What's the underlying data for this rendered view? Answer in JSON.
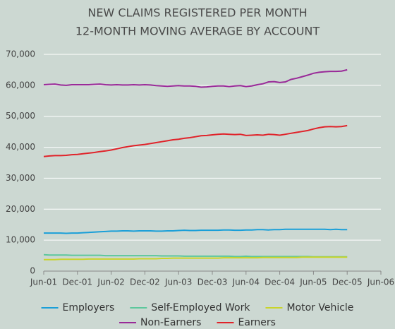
{
  "chart_data": {
    "type": "line",
    "title": [
      "NEW CLAIMS REGISTERED PER MONTH",
      "12-MONTH MOVING AVERAGE BY ACCOUNT"
    ],
    "categories": [
      "Jun-01",
      null,
      null,
      null,
      null,
      null,
      "Dec-01",
      null,
      null,
      null,
      null,
      null,
      "Jun-02",
      null,
      null,
      null,
      null,
      null,
      "Dec-02",
      null,
      null,
      null,
      null,
      null,
      "Jun-03",
      null,
      null,
      null,
      null,
      null,
      "Dec-03",
      null,
      null,
      null,
      null,
      null,
      "Jun-04",
      null,
      null,
      null,
      null,
      null,
      "Dec-04",
      null,
      null,
      null,
      null,
      null,
      "Jun-05",
      null,
      null,
      null,
      null,
      null,
      "Dec-05",
      null,
      null,
      null,
      null,
      null,
      "Jun-06"
    ],
    "ylim": [
      0,
      70000
    ],
    "yticks": [
      0,
      {
        "value": 10000,
        "label": "10,000"
      },
      {
        "value": 20000,
        "label": "20,000"
      },
      {
        "value": 30000,
        "label": "30,000"
      },
      {
        "value": 40000,
        "label": "40,000"
      },
      {
        "value": 50000,
        "label": "50,000"
      },
      {
        "value": 60000,
        "label": "60,000"
      },
      {
        "value": 70000,
        "label": "70,000"
      }
    ],
    "grid": true,
    "series": [
      {
        "name": "Employers",
        "color": "#1a9fd8",
        "values": [
          12300,
          12300,
          12300,
          12300,
          12200,
          12300,
          12300,
          12400,
          12500,
          12600,
          12700,
          12800,
          12900,
          12900,
          13000,
          13000,
          12900,
          13000,
          13000,
          13000,
          12900,
          12900,
          13000,
          13000,
          13100,
          13200,
          13100,
          13100,
          13200,
          13200,
          13200,
          13200,
          13300,
          13300,
          13200,
          13200,
          13300,
          13300,
          13400,
          13400,
          13300,
          13400,
          13400,
          13500,
          13500,
          13500,
          13500,
          13500,
          13500,
          13500,
          13500,
          13400,
          13500,
          13400,
          13400,
          null,
          null,
          null,
          null,
          null,
          null
        ]
      },
      {
        "name": "Self-Employed Work",
        "color": "#5cc79c",
        "values": [
          5300,
          5200,
          5200,
          5200,
          5200,
          5100,
          5100,
          5100,
          5100,
          5100,
          5100,
          5000,
          5000,
          5000,
          5000,
          5000,
          5000,
          5000,
          5000,
          5000,
          5000,
          4900,
          4900,
          4900,
          4900,
          4800,
          4800,
          4800,
          4800,
          4800,
          4800,
          4800,
          4800,
          4800,
          4700,
          4700,
          4800,
          4700,
          4700,
          4700,
          4700,
          4700,
          4700,
          4700,
          4700,
          4700,
          4700,
          4700,
          4600,
          4600,
          4600,
          4600,
          4600,
          4600,
          4600,
          null,
          null,
          null,
          null,
          null,
          null
        ]
      },
      {
        "name": "Motor Vehicle",
        "color": "#c9d42a",
        "values": [
          3700,
          3700,
          3700,
          3800,
          3800,
          3800,
          3800,
          3800,
          3900,
          3900,
          3900,
          3900,
          3900,
          3900,
          3900,
          3900,
          3900,
          4000,
          4000,
          4000,
          4000,
          4100,
          4100,
          4200,
          4200,
          4200,
          4200,
          4200,
          4200,
          4200,
          4200,
          4200,
          4300,
          4300,
          4300,
          4300,
          4300,
          4300,
          4300,
          4400,
          4400,
          4400,
          4400,
          4400,
          4400,
          4400,
          4500,
          4500,
          4500,
          4500,
          4500,
          4500,
          4500,
          4500,
          4500,
          null,
          null,
          null,
          null,
          null,
          null
        ]
      },
      {
        "name": "Non-Earners",
        "color": "#992a98",
        "values": [
          60200,
          60300,
          60400,
          60100,
          60000,
          60200,
          60200,
          60200,
          60200,
          60300,
          60400,
          60200,
          60100,
          60200,
          60100,
          60100,
          60200,
          60100,
          60200,
          60100,
          59900,
          59800,
          59700,
          59800,
          59900,
          59800,
          59800,
          59700,
          59400,
          59500,
          59700,
          59800,
          59800,
          59600,
          59800,
          59900,
          59600,
          59800,
          60200,
          60500,
          61100,
          61200,
          60900,
          61100,
          61900,
          62300,
          62800,
          63300,
          63900,
          64200,
          64400,
          64500,
          64500,
          64600,
          65000,
          null,
          null,
          null,
          null,
          null,
          null
        ]
      },
      {
        "name": "Earners",
        "color": "#e0232a",
        "values": [
          37000,
          37200,
          37300,
          37300,
          37400,
          37600,
          37700,
          37900,
          38100,
          38300,
          38600,
          38800,
          39100,
          39500,
          39900,
          40200,
          40500,
          40700,
          40900,
          41200,
          41500,
          41800,
          42100,
          42400,
          42600,
          42900,
          43100,
          43400,
          43700,
          43800,
          44000,
          44200,
          44300,
          44200,
          44100,
          44200,
          43800,
          43900,
          44000,
          43900,
          44200,
          44100,
          43900,
          44200,
          44500,
          44800,
          45100,
          45400,
          45900,
          46300,
          46600,
          46700,
          46600,
          46700,
          47000,
          null,
          null,
          null,
          null,
          null,
          null
        ]
      }
    ]
  }
}
